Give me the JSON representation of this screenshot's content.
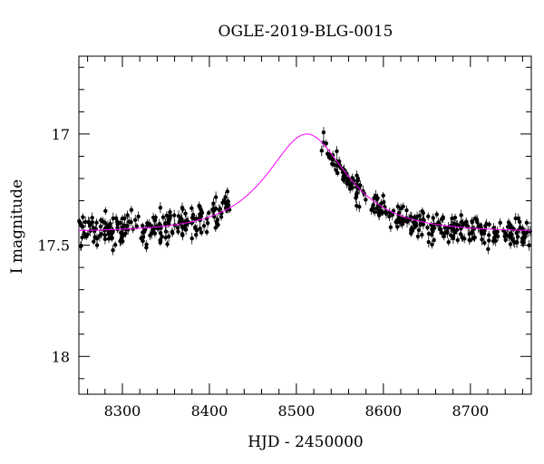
{
  "chart_data": {
    "type": "scatter",
    "title": "OGLE-2019-BLG-0015",
    "xlabel": "HJD - 2450000",
    "ylabel": "I magnitude",
    "xlim": [
      8250,
      8770
    ],
    "ylim": [
      18.17,
      16.65
    ],
    "y_inverted": true,
    "x_ticks": [
      8300,
      8400,
      8500,
      8600,
      8700
    ],
    "y_ticks": [
      17,
      17.5,
      18
    ],
    "x_minor_step": 20,
    "y_minor_step": 0.1,
    "grid": false,
    "colors": {
      "points": "#000000",
      "model": "#ff00ff",
      "axes": "#000000"
    },
    "model": {
      "type": "point-lens",
      "t0": 8512,
      "tE": 72,
      "u0": 0.75,
      "baseline_mag": 17.44,
      "peak_mag": 17.0
    },
    "observations": {
      "segments": [
        {
          "x_start": 8250,
          "x_end": 8425,
          "count": 230,
          "scatter": 0.035,
          "offset": 0.0
        },
        {
          "x_start": 8527,
          "x_end": 8770,
          "count": 300,
          "scatter": 0.03,
          "offset": 0.01
        }
      ],
      "typical_error": 0.02
    }
  }
}
